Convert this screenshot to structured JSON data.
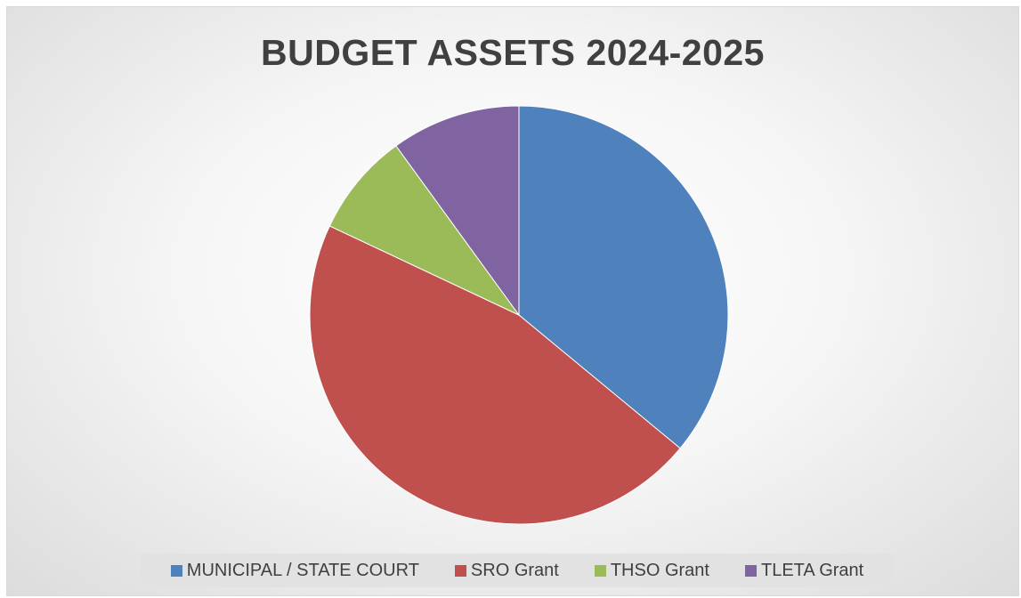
{
  "chart_data": {
    "type": "pie",
    "title": "BUDGET ASSETS 2024-2025",
    "categories": [
      "MUNICIPAL / STATE COURT",
      "SRO Grant",
      "THSO Grant",
      "TLETA Grant"
    ],
    "values": [
      36,
      46,
      8,
      10
    ],
    "colors": [
      "#4f81bd",
      "#c0504d",
      "#9bbb59",
      "#8064a2"
    ],
    "legend": "bottom",
    "start_angle": "top, clockwise"
  }
}
